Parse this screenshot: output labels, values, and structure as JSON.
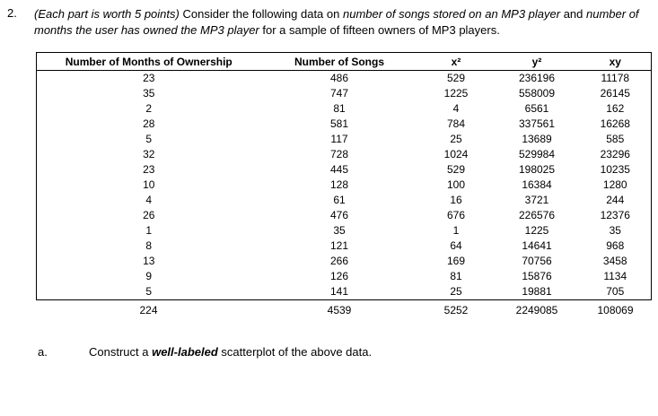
{
  "problem": {
    "number": "2.",
    "intro_italic1": "(Each part is worth 5 points)",
    "intro_text1": " Consider the following data on ",
    "intro_italic2": "number of songs stored on an MP3 player",
    "intro_text2": " and ",
    "intro_italic3": "number of months the user has owned the MP3 player",
    "intro_text3": " for a sample of fifteen owners of MP3 players."
  },
  "table": {
    "headers": [
      "Number of Months of Ownership",
      "Number of Songs",
      "x²",
      "y²",
      "xy"
    ],
    "rows": [
      [
        "23",
        "486",
        "529",
        "236196",
        "11178"
      ],
      [
        "35",
        "747",
        "1225",
        "558009",
        "26145"
      ],
      [
        "2",
        "81",
        "4",
        "6561",
        "162"
      ],
      [
        "28",
        "581",
        "784",
        "337561",
        "16268"
      ],
      [
        "5",
        "117",
        "25",
        "13689",
        "585"
      ],
      [
        "32",
        "728",
        "1024",
        "529984",
        "23296"
      ],
      [
        "23",
        "445",
        "529",
        "198025",
        "10235"
      ],
      [
        "10",
        "128",
        "100",
        "16384",
        "1280"
      ],
      [
        "4",
        "61",
        "16",
        "3721",
        "244"
      ],
      [
        "26",
        "476",
        "676",
        "226576",
        "12376"
      ],
      [
        "1",
        "35",
        "1",
        "1225",
        "35"
      ],
      [
        "8",
        "121",
        "64",
        "14641",
        "968"
      ],
      [
        "13",
        "266",
        "169",
        "70756",
        "3458"
      ],
      [
        "9",
        "126",
        "81",
        "15876",
        "1134"
      ],
      [
        "5",
        "141",
        "25",
        "19881",
        "705"
      ]
    ],
    "totals": [
      "224",
      "4539",
      "5252",
      "2249085",
      "108069"
    ]
  },
  "part_a": {
    "label": "a.",
    "text_before": "Construct a ",
    "bold_italic": "well-labeled",
    "text_after": " scatterplot of the above data."
  }
}
